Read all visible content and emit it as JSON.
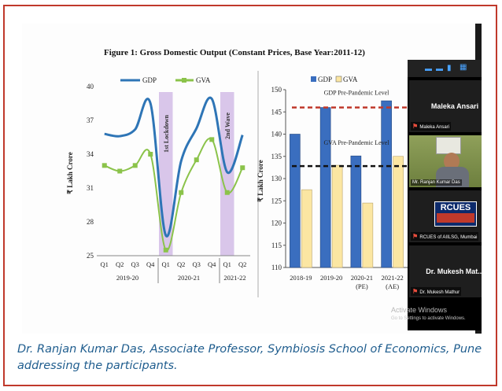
{
  "figure_title": "Figure 1: Gross Domestic Output (Constant Prices, Base Year:2011-12)",
  "colors": {
    "gdp": "#2e75b6",
    "gva": "#8bc34a",
    "gdp_bar": "#3a6ebf",
    "gva_bar": "#fbe6a2",
    "shade": "#d9c6ea",
    "dashed_gdp": "#c0392b",
    "frame": "#c0392b",
    "caption": "#1f5d8e"
  },
  "chart_data": [
    {
      "type": "line",
      "legend": [
        "GDP",
        "GVA"
      ],
      "ylabel": "₹ Lakh Crore",
      "ylim": [
        25,
        40
      ],
      "yticks": [
        "40",
        "37",
        "34",
        "31",
        "28",
        "25"
      ],
      "categories": [
        "Q1",
        "Q2",
        "Q3",
        "Q4",
        "Q1",
        "Q2",
        "Q3",
        "Q4",
        "Q1",
        "Q2"
      ],
      "groups": [
        "2019-20",
        "2020-21",
        "2021-22"
      ],
      "series": [
        {
          "name": "GDP",
          "values": [
            35.8,
            35.6,
            36.2,
            38.5,
            26.8,
            33.4,
            36.3,
            38.9,
            32.4,
            35.7
          ]
        },
        {
          "name": "GVA",
          "values": [
            33.0,
            32.5,
            33.0,
            34.0,
            25.5,
            30.6,
            33.5,
            35.3,
            30.6,
            32.8
          ]
        }
      ],
      "shade_labels": [
        "1st Lockdown",
        "2nd Wave"
      ]
    },
    {
      "type": "bar",
      "legend": [
        "GDP",
        "GVA"
      ],
      "ylabel": "₹ Lakh Crore",
      "ylim": [
        110,
        150
      ],
      "yticks": [
        "150",
        "145",
        "140",
        "135",
        "130",
        "125",
        "120",
        "115",
        "110"
      ],
      "categories": [
        "2018-19",
        "2019-20",
        "2020-21",
        "2021-22"
      ],
      "sublabels": [
        "",
        "",
        "(PE)",
        "(AE)"
      ],
      "series": [
        {
          "name": "GDP",
          "values": [
            140,
            146,
            135.1,
            147.5
          ]
        },
        {
          "name": "GVA",
          "values": [
            127.5,
            133,
            124.5,
            135
          ]
        }
      ],
      "annotations": [
        {
          "text": "GDP Pre-Pandemic Level",
          "value": 146
        },
        {
          "text": "GVA Pre-Pandemic Level",
          "value": 132.8
        }
      ]
    }
  ],
  "participants": [
    {
      "name": "Maleka Ansari",
      "label": "Maleka Ansari"
    },
    {
      "name": "",
      "label": "Mr. Ranjan Kumar Das"
    },
    {
      "name": "RCUES Mumbai",
      "label": "RCUES of AIILSG, Mumbai"
    },
    {
      "name": "Dr. Mukesh Mat...",
      "label": "Dr. Mukesh Mathur"
    }
  ],
  "banner_text": "RCUES",
  "watermark": {
    "title": "Activate Windows",
    "sub": "Go to Settings to activate Windows."
  },
  "caption": "Dr. Ranjan Kumar Das, Associate Professor, Symbiosis School of Economics, Pune addressing the participants."
}
